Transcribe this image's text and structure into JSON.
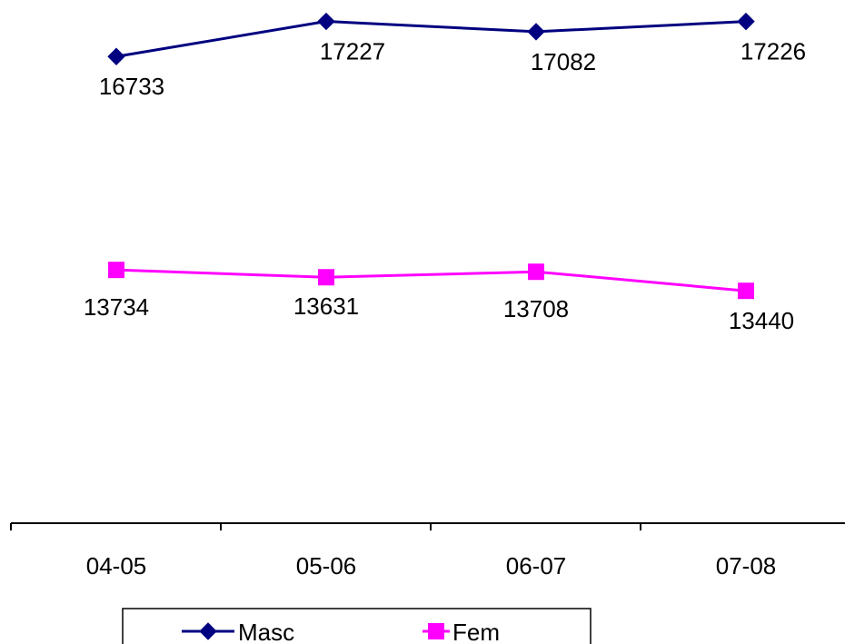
{
  "chart_data": {
    "type": "line",
    "categories": [
      "04-05",
      "05-06",
      "06-07",
      "07-08"
    ],
    "series": [
      {
        "name": "Masc",
        "values": [
          16733,
          17227,
          17082,
          17226
        ],
        "labels": [
          "16733",
          "17227",
          "17082",
          "17226"
        ],
        "color": "#000080",
        "marker": "diamond"
      },
      {
        "name": "Fem",
        "values": [
          13734,
          13631,
          13708,
          13440
        ],
        "labels": [
          "13734",
          "13631",
          "13708",
          "13440"
        ],
        "color": "#ff00ff",
        "marker": "square"
      }
    ],
    "ylim": [
      12000,
      17400
    ],
    "grid": false,
    "y_axis_visible": false,
    "legend_position": "bottom",
    "title": "",
    "xlabel": "",
    "ylabel": ""
  }
}
